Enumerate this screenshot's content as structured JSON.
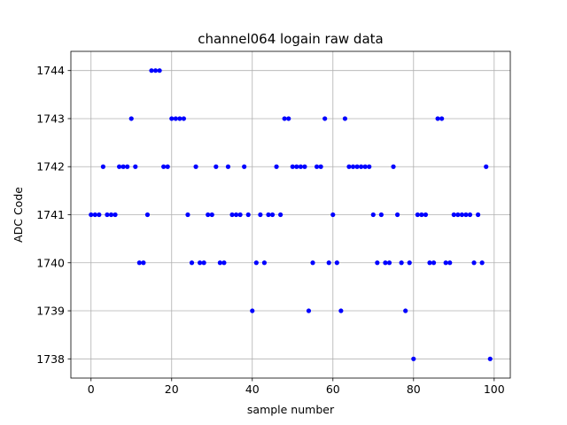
{
  "chart_data": {
    "type": "scatter",
    "title": "channel064 logain raw data",
    "xlabel": "sample number",
    "ylabel": "ADC Code",
    "xlim": [
      -5,
      104
    ],
    "ylim": [
      1737.6,
      1744.4
    ],
    "xticks": [
      0,
      20,
      40,
      60,
      80,
      100
    ],
    "yticks": [
      1738,
      1739,
      1740,
      1741,
      1742,
      1743,
      1744
    ],
    "grid": true,
    "marker_color": "#0000ff",
    "series": [
      {
        "x": [
          0,
          1,
          2,
          3,
          4,
          5,
          6,
          7,
          8,
          9,
          10,
          11,
          12,
          13,
          14,
          15,
          16,
          17,
          18,
          19,
          20,
          21,
          22,
          23,
          24,
          25,
          26,
          27,
          28,
          29,
          30,
          31,
          32,
          33,
          34,
          35,
          36,
          37,
          38,
          39,
          40,
          41,
          42,
          43,
          44,
          45,
          46,
          47,
          48,
          49,
          50,
          51,
          52,
          53,
          54,
          55,
          56,
          57,
          58,
          59,
          60,
          61,
          62,
          63,
          64,
          65,
          66,
          67,
          68,
          69,
          70,
          71,
          72,
          73,
          74,
          75,
          76,
          77,
          78,
          79,
          80,
          81,
          82,
          83,
          84,
          85,
          86,
          87,
          88,
          89,
          90,
          91,
          92,
          93,
          94,
          95,
          96,
          97,
          98,
          99
        ],
        "y": [
          1741,
          1741,
          1741,
          1742,
          1741,
          1741,
          1741,
          1742,
          1742,
          1742,
          1743,
          1742,
          1740,
          1740,
          1741,
          1744,
          1744,
          1744,
          1742,
          1742,
          1743,
          1743,
          1743,
          1743,
          1741,
          1740,
          1742,
          1740,
          1740,
          1741,
          1741,
          1742,
          1740,
          1740,
          1742,
          1741,
          1741,
          1741,
          1742,
          1741,
          1739,
          1740,
          1741,
          1740,
          1741,
          1741,
          1742,
          1741,
          1743,
          1743,
          1742,
          1742,
          1742,
          1742,
          1739,
          1740,
          1742,
          1742,
          1743,
          1740,
          1741,
          1740,
          1739,
          1743,
          1742,
          1742,
          1742,
          1742,
          1742,
          1742,
          1741,
          1740,
          1741,
          1740,
          1740,
          1742,
          1741,
          1740,
          1739,
          1740,
          1738,
          1741,
          1741,
          1741,
          1740,
          1740,
          1743,
          1743,
          1740,
          1740,
          1741,
          1741,
          1741,
          1741,
          1741,
          1740,
          1741,
          1740,
          1742,
          1738
        ]
      }
    ]
  }
}
